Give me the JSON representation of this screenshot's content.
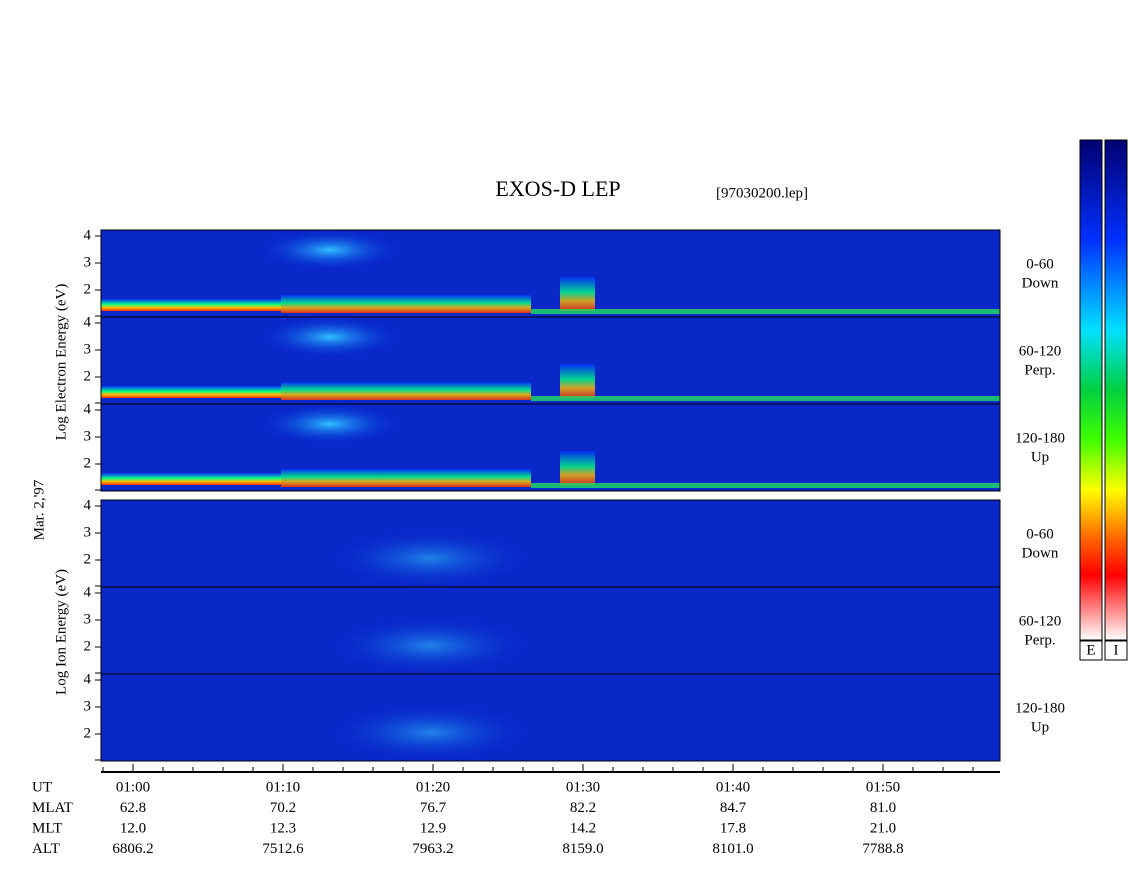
{
  "header": {
    "title": "EXOS-D LEP",
    "file": "[97030200.lep]"
  },
  "electron_axis_label": "Log Electron Energy (eV)",
  "ion_axis_label": "Log Ion Energy (eV)",
  "date": "Mar. 2,'97",
  "panels": [
    {
      "label": [
        "0-60",
        "Down"
      ],
      "yticks": [
        "4",
        "3",
        "2"
      ]
    },
    {
      "label": [
        "60-120",
        "Perp."
      ],
      "yticks": [
        "4",
        "3",
        "2"
      ]
    },
    {
      "label": [
        "120-180",
        "Up"
      ],
      "yticks": [
        "4",
        "3",
        "2"
      ]
    },
    {
      "label": [
        "0-60",
        "Down"
      ],
      "yticks": [
        "4",
        "3",
        "2"
      ]
    },
    {
      "label": [
        "60-120",
        "Perp."
      ],
      "yticks": [
        "4",
        "3",
        "2"
      ]
    },
    {
      "label": [
        "120-180",
        "Up"
      ],
      "yticks": [
        "4",
        "3",
        "2"
      ]
    }
  ],
  "table": {
    "rows": [
      {
        "name": "UT",
        "values": [
          "01:00",
          "01:10",
          "01:20",
          "01:30",
          "01:40",
          "01:50"
        ]
      },
      {
        "name": "MLAT",
        "values": [
          "62.8",
          "70.2",
          "76.7",
          "82.2",
          "84.7",
          "81.0"
        ]
      },
      {
        "name": "MLT",
        "values": [
          "12.0",
          "12.3",
          "12.9",
          "14.2",
          "17.8",
          "21.0"
        ]
      },
      {
        "name": "ALT",
        "values": [
          "6806.2",
          "7512.6",
          "7963.2",
          "8159.0",
          "8101.0",
          "7788.8"
        ]
      }
    ]
  },
  "colorbars": [
    "E",
    "I"
  ]
}
